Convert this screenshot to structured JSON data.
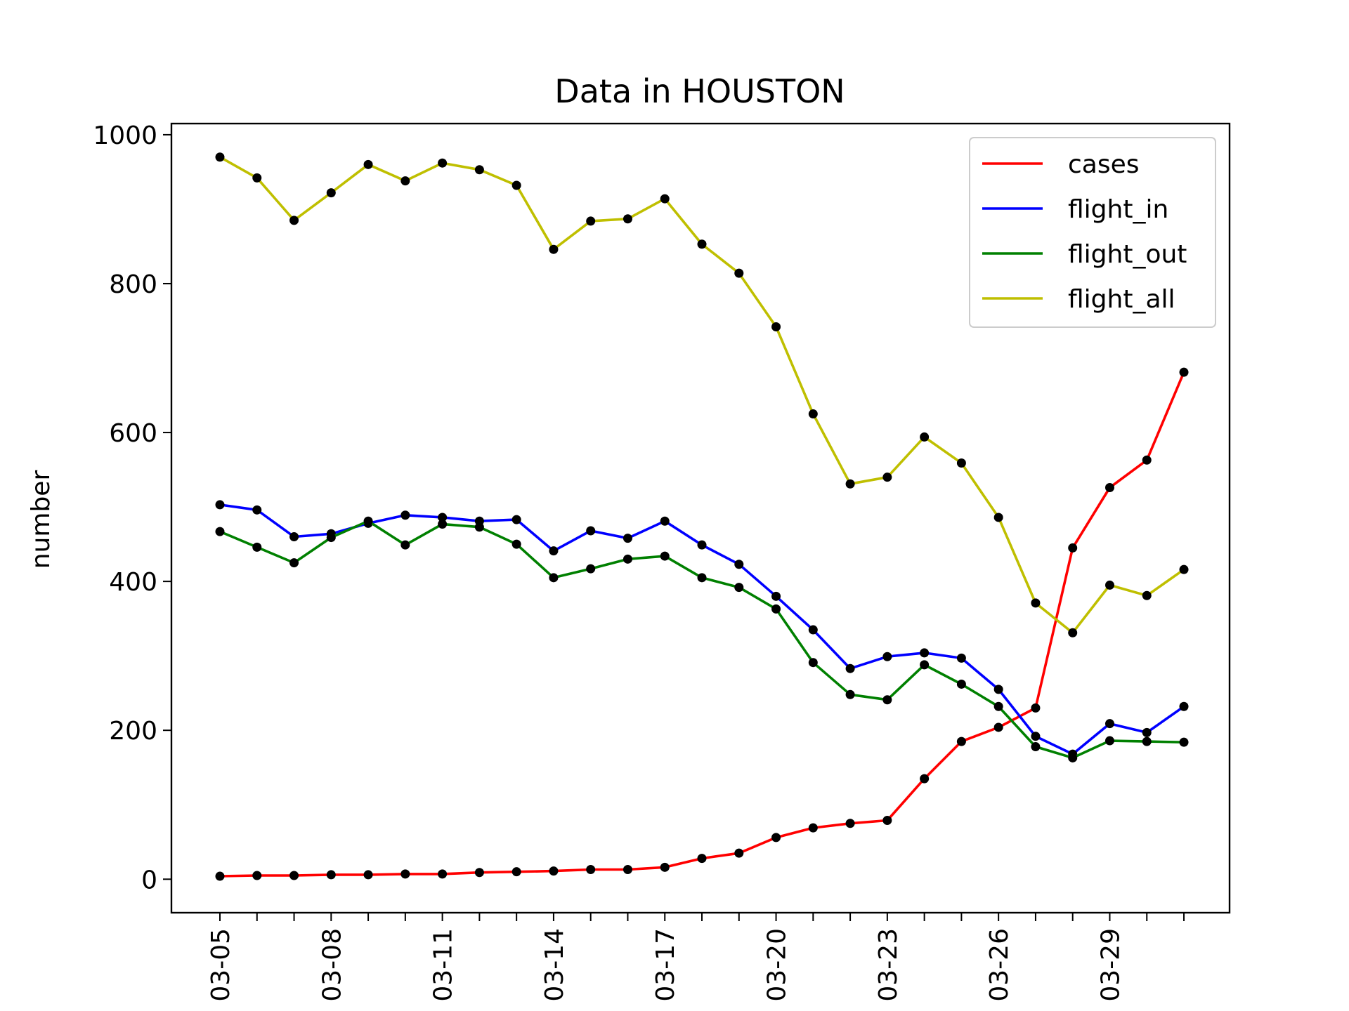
{
  "chart_data": {
    "type": "line",
    "title": "Data in HOUSTON",
    "xlabel": "",
    "ylabel": "number",
    "ylim": [
      -45,
      1015
    ],
    "yticks": [
      0,
      200,
      400,
      600,
      800,
      1000
    ],
    "x": [
      "03-05",
      "03-06",
      "03-07",
      "03-08",
      "03-09",
      "03-10",
      "03-11",
      "03-12",
      "03-13",
      "03-14",
      "03-15",
      "03-16",
      "03-17",
      "03-18",
      "03-19",
      "03-20",
      "03-21",
      "03-22",
      "03-23",
      "03-24",
      "03-25",
      "03-26",
      "03-27",
      "03-28",
      "03-29",
      "03-30",
      "03-31"
    ],
    "xtick_labels": [
      "03-05",
      "03-08",
      "03-11",
      "03-14",
      "03-17",
      "03-20",
      "03-23",
      "03-26",
      "03-29"
    ],
    "legend_position": "top-right",
    "grid": false,
    "marker_color": "#000000",
    "series": [
      {
        "name": "cases",
        "color": "#ff0000",
        "values": [
          4,
          5,
          5,
          6,
          6,
          7,
          7,
          9,
          10,
          11,
          13,
          13,
          16,
          28,
          35,
          56,
          69,
          75,
          79,
          135,
          185,
          204,
          230,
          445,
          526,
          563,
          681
        ]
      },
      {
        "name": "flight_in",
        "color": "#0000ff",
        "values": [
          503,
          496,
          460,
          464,
          478,
          489,
          486,
          481,
          483,
          441,
          468,
          458,
          481,
          449,
          423,
          380,
          335,
          283,
          299,
          304,
          297,
          255,
          192,
          168,
          209,
          197,
          232
        ]
      },
      {
        "name": "flight_out",
        "color": "#008000",
        "values": [
          467,
          446,
          425,
          459,
          481,
          449,
          477,
          473,
          450,
          405,
          417,
          430,
          434,
          405,
          392,
          363,
          291,
          248,
          241,
          288,
          262,
          232,
          178,
          163,
          186,
          185,
          184
        ]
      },
      {
        "name": "flight_all",
        "color": "#bfbf00",
        "values": [
          970,
          942,
          885,
          922,
          960,
          938,
          962,
          953,
          932,
          846,
          884,
          887,
          914,
          853,
          814,
          742,
          625,
          531,
          540,
          594,
          559,
          486,
          371,
          331,
          395,
          381,
          416
        ]
      }
    ]
  }
}
